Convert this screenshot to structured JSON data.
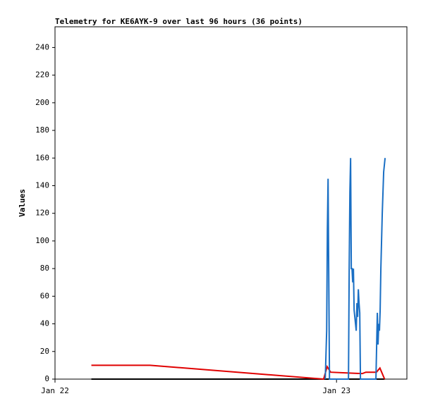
{
  "chart_data": {
    "type": "line",
    "title": "Telemetry for KE6AYK-9 over last 96 hours (36 points)",
    "y_label": "Values",
    "xlim": [
      0,
      30
    ],
    "xticks": [
      {
        "value": 0,
        "label": "Jan 22"
      },
      {
        "value": 24,
        "label": "Jan 23"
      }
    ],
    "ylim": [
      0,
      255
    ],
    "yticks": [
      0,
      20,
      40,
      60,
      80,
      100,
      120,
      140,
      160,
      180,
      200,
      220,
      240
    ],
    "grid": false,
    "series": [
      {
        "name": "black",
        "color": "#000000",
        "x": [
          3.1,
          28.1
        ],
        "values": [
          0,
          0
        ]
      },
      {
        "name": "red",
        "color": "#e00000",
        "x": [
          3.1,
          8.1,
          22.9,
          23.2,
          23.5,
          26.2,
          26.5,
          27.4,
          27.7,
          28.1
        ],
        "values": [
          10,
          10,
          0,
          9,
          5,
          4,
          5,
          5,
          8,
          0
        ]
      },
      {
        "name": "blue",
        "color": "#1a6fc4",
        "x": [
          23.04,
          23.16,
          23.22,
          23.28,
          23.34,
          23.4,
          25.02,
          25.08,
          25.14,
          25.2,
          25.26,
          25.32,
          25.38,
          25.44,
          25.5,
          25.56,
          25.62,
          25.68,
          25.74,
          25.8,
          25.86,
          25.92,
          25.98,
          26.04,
          27.36,
          27.48,
          27.54,
          27.6,
          27.66,
          27.72,
          27.78,
          27.9,
          28.02,
          28.14
        ],
        "values": [
          0,
          35,
          108,
          145,
          72,
          0,
          0,
          80,
          135,
          160,
          80,
          80,
          70,
          80,
          50,
          45,
          40,
          35,
          55,
          45,
          65,
          55,
          48,
          0,
          0,
          48,
          25,
          40,
          35,
          50,
          80,
          120,
          150,
          160
        ]
      }
    ]
  }
}
